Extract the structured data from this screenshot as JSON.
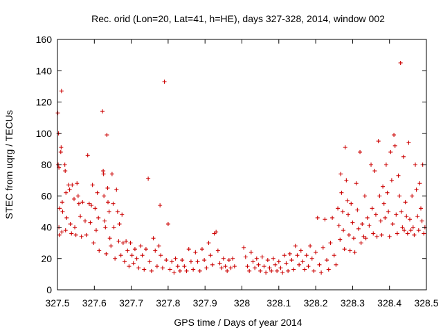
{
  "chart_data": {
    "type": "scatter",
    "title": "Rec. orid (Lon=20, Lat=41, h=HE), days 327-328, 2014, window 002",
    "xlabel": "GPS time / Days of year 2014",
    "ylabel": "STEC from uqrg / TECUs",
    "xlim": [
      327.5,
      328.5
    ],
    "ylim": [
      0,
      160
    ],
    "xticks": [
      "327.5",
      "327.6",
      "327.7",
      "327.8",
      "327.9",
      "328",
      "328.1",
      "328.2",
      "328.3",
      "328.4",
      "328.5"
    ],
    "yticks": [
      "0",
      "20",
      "40",
      "60",
      "80",
      "100",
      "120",
      "140",
      "160"
    ],
    "grid": false,
    "marker": "plus",
    "color": "#cc0000",
    "series": [
      {
        "name": "STEC",
        "points": [
          [
            327.501,
            113
          ],
          [
            327.503,
            100
          ],
          [
            327.502,
            80
          ],
          [
            327.504,
            78
          ],
          [
            327.506,
            52
          ],
          [
            327.504,
            40
          ],
          [
            327.505,
            35
          ],
          [
            327.511,
            127
          ],
          [
            327.51,
            91
          ],
          [
            327.509,
            88
          ],
          [
            327.513,
            56
          ],
          [
            327.514,
            50
          ],
          [
            327.512,
            37
          ],
          [
            327.52,
            80
          ],
          [
            327.521,
            76
          ],
          [
            327.523,
            62
          ],
          [
            327.525,
            46
          ],
          [
            327.522,
            38
          ],
          [
            327.53,
            67
          ],
          [
            327.533,
            64
          ],
          [
            327.535,
            42
          ],
          [
            327.538,
            36
          ],
          [
            327.54,
            67
          ],
          [
            327.545,
            58
          ],
          [
            327.547,
            40
          ],
          [
            327.55,
            35
          ],
          [
            327.553,
            68
          ],
          [
            327.556,
            60
          ],
          [
            327.558,
            55
          ],
          [
            327.562,
            47
          ],
          [
            327.565,
            34
          ],
          [
            327.568,
            56
          ],
          [
            327.575,
            44
          ],
          [
            327.578,
            35
          ],
          [
            327.582,
            86
          ],
          [
            327.586,
            55
          ],
          [
            327.589,
            43
          ],
          [
            327.592,
            54
          ],
          [
            327.595,
            67
          ],
          [
            327.598,
            30
          ],
          [
            327.602,
            52
          ],
          [
            327.605,
            38
          ],
          [
            327.608,
            62
          ],
          [
            327.611,
            46
          ],
          [
            327.613,
            25
          ],
          [
            327.622,
            114
          ],
          [
            327.624,
            76
          ],
          [
            327.625,
            74
          ],
          [
            327.626,
            60
          ],
          [
            327.628,
            44
          ],
          [
            327.63,
            40
          ],
          [
            327.632,
            23
          ],
          [
            327.634,
            99
          ],
          [
            327.636,
            65
          ],
          [
            327.637,
            56
          ],
          [
            327.64,
            50
          ],
          [
            327.642,
            33
          ],
          [
            327.645,
            28
          ],
          [
            327.648,
            74
          ],
          [
            327.651,
            55
          ],
          [
            327.653,
            40
          ],
          [
            327.656,
            20
          ],
          [
            327.66,
            64
          ],
          [
            327.663,
            50
          ],
          [
            327.666,
            31
          ],
          [
            327.668,
            42
          ],
          [
            327.672,
            22
          ],
          [
            327.675,
            48
          ],
          [
            327.678,
            30
          ],
          [
            327.682,
            18
          ],
          [
            327.686,
            31
          ],
          [
            327.69,
            25
          ],
          [
            327.694,
            15
          ],
          [
            327.698,
            30
          ],
          [
            327.702,
            22
          ],
          [
            327.706,
            17
          ],
          [
            327.71,
            26
          ],
          [
            327.715,
            20
          ],
          [
            327.72,
            14
          ],
          [
            327.726,
            28
          ],
          [
            327.73,
            22
          ],
          [
            327.735,
            13
          ],
          [
            327.74,
            26
          ],
          [
            327.746,
            71
          ],
          [
            327.75,
            18
          ],
          [
            327.755,
            12
          ],
          [
            327.76,
            33
          ],
          [
            327.765,
            25
          ],
          [
            327.77,
            15
          ],
          [
            327.775,
            28
          ],
          [
            327.778,
            54
          ],
          [
            327.78,
            22
          ],
          [
            327.785,
            14
          ],
          [
            327.79,
            133
          ],
          [
            327.795,
            19
          ],
          [
            327.8,
            42
          ],
          [
            327.805,
            13
          ],
          [
            327.81,
            18
          ],
          [
            327.816,
            11
          ],
          [
            327.82,
            20
          ],
          [
            327.826,
            15
          ],
          [
            327.832,
            12
          ],
          [
            327.838,
            19
          ],
          [
            327.844,
            15
          ],
          [
            327.85,
            12
          ],
          [
            327.856,
            26
          ],
          [
            327.862,
            18
          ],
          [
            327.868,
            13
          ],
          [
            327.874,
            24
          ],
          [
            327.88,
            18
          ],
          [
            327.886,
            12
          ],
          [
            327.892,
            26
          ],
          [
            327.898,
            19
          ],
          [
            327.904,
            14
          ],
          [
            327.91,
            30
          ],
          [
            327.915,
            22
          ],
          [
            327.92,
            16
          ],
          [
            327.925,
            36
          ],
          [
            327.93,
            37
          ],
          [
            327.935,
            25
          ],
          [
            327.94,
            17
          ],
          [
            327.945,
            14
          ],
          [
            327.95,
            20
          ],
          [
            327.955,
            15
          ],
          [
            327.96,
            12
          ],
          [
            327.965,
            19
          ],
          [
            327.97,
            14
          ],
          [
            327.975,
            20
          ],
          [
            327.98,
            15
          ],
          [
            328.005,
            27
          ],
          [
            328.01,
            21
          ],
          [
            328.015,
            15
          ],
          [
            328.02,
            12
          ],
          [
            328.025,
            24
          ],
          [
            328.03,
            18
          ],
          [
            328.035,
            14
          ],
          [
            328.04,
            20
          ],
          [
            328.045,
            16
          ],
          [
            328.05,
            12
          ],
          [
            328.055,
            21
          ],
          [
            328.06,
            15
          ],
          [
            328.065,
            11
          ],
          [
            328.07,
            19
          ],
          [
            328.075,
            14
          ],
          [
            328.08,
            12
          ],
          [
            328.085,
            20
          ],
          [
            328.09,
            16
          ],
          [
            328.095,
            12
          ],
          [
            328.1,
            18
          ],
          [
            328.105,
            14
          ],
          [
            328.11,
            11
          ],
          [
            328.115,
            22
          ],
          [
            328.12,
            17
          ],
          [
            328.125,
            12
          ],
          [
            328.13,
            23
          ],
          [
            328.135,
            19
          ],
          [
            328.14,
            13
          ],
          [
            328.145,
            28
          ],
          [
            328.15,
            22
          ],
          [
            328.155,
            16
          ],
          [
            328.16,
            25
          ],
          [
            328.165,
            18
          ],
          [
            328.17,
            13
          ],
          [
            328.175,
            22
          ],
          [
            328.18,
            15
          ],
          [
            328.185,
            28
          ],
          [
            328.19,
            20
          ],
          [
            328.195,
            12
          ],
          [
            328.2,
            24
          ],
          [
            328.205,
            46
          ],
          [
            328.21,
            16
          ],
          [
            328.215,
            11
          ],
          [
            328.22,
            27
          ],
          [
            328.225,
            45
          ],
          [
            328.23,
            19
          ],
          [
            328.235,
            13
          ],
          [
            328.24,
            30
          ],
          [
            328.245,
            46
          ],
          [
            328.25,
            22
          ],
          [
            328.255,
            16
          ],
          [
            328.26,
            52
          ],
          [
            328.263,
            41
          ],
          [
            328.266,
            32
          ],
          [
            328.268,
            74
          ],
          [
            328.27,
            62
          ],
          [
            328.273,
            50
          ],
          [
            328.275,
            38
          ],
          [
            328.278,
            26
          ],
          [
            328.28,
            91
          ],
          [
            328.283,
            70
          ],
          [
            328.286,
            57
          ],
          [
            328.288,
            48
          ],
          [
            328.29,
            35
          ],
          [
            328.293,
            25
          ],
          [
            328.296,
            55
          ],
          [
            328.3,
            43
          ],
          [
            328.303,
            33
          ],
          [
            328.306,
            24
          ],
          [
            328.31,
            68
          ],
          [
            328.313,
            51
          ],
          [
            328.316,
            39
          ],
          [
            328.32,
            88
          ],
          [
            328.323,
            30
          ],
          [
            328.326,
            42
          ],
          [
            328.33,
            34
          ],
          [
            328.333,
            60
          ],
          [
            328.336,
            33
          ],
          [
            328.34,
            46
          ],
          [
            328.345,
            41
          ],
          [
            328.35,
            80
          ],
          [
            328.353,
            52
          ],
          [
            328.356,
            36
          ],
          [
            328.36,
            76
          ],
          [
            328.363,
            48
          ],
          [
            328.366,
            34
          ],
          [
            328.37,
            95
          ],
          [
            328.373,
            60
          ],
          [
            328.376,
            44
          ],
          [
            328.379,
            35
          ],
          [
            328.382,
            66
          ],
          [
            328.385,
            55
          ],
          [
            328.388,
            46
          ],
          [
            328.391,
            80
          ],
          [
            328.394,
            62
          ],
          [
            328.397,
            50
          ],
          [
            328.4,
            34
          ],
          [
            328.403,
            88
          ],
          [
            328.406,
            70
          ],
          [
            328.409,
            42
          ],
          [
            328.412,
            99
          ],
          [
            328.415,
            92
          ],
          [
            328.418,
            48
          ],
          [
            328.421,
            36
          ],
          [
            328.424,
            73
          ],
          [
            328.427,
            60
          ],
          [
            328.43,
            145
          ],
          [
            328.432,
            50
          ],
          [
            328.435,
            40
          ],
          [
            328.438,
            85
          ],
          [
            328.44,
            38
          ],
          [
            328.443,
            56
          ],
          [
            328.446,
            47
          ],
          [
            328.449,
            36
          ],
          [
            328.452,
            94
          ],
          [
            328.455,
            45
          ],
          [
            328.458,
            38
          ],
          [
            328.461,
            60
          ],
          [
            328.464,
            40
          ],
          [
            328.467,
            35
          ],
          [
            328.47,
            80
          ],
          [
            328.473,
            64
          ],
          [
            328.476,
            47
          ],
          [
            328.479,
            38
          ],
          [
            328.482,
            68
          ],
          [
            328.485,
            52
          ],
          [
            328.488,
            44
          ],
          [
            328.49,
            80
          ],
          [
            328.493,
            36
          ],
          [
            328.496,
            40
          ]
        ]
      }
    ]
  }
}
